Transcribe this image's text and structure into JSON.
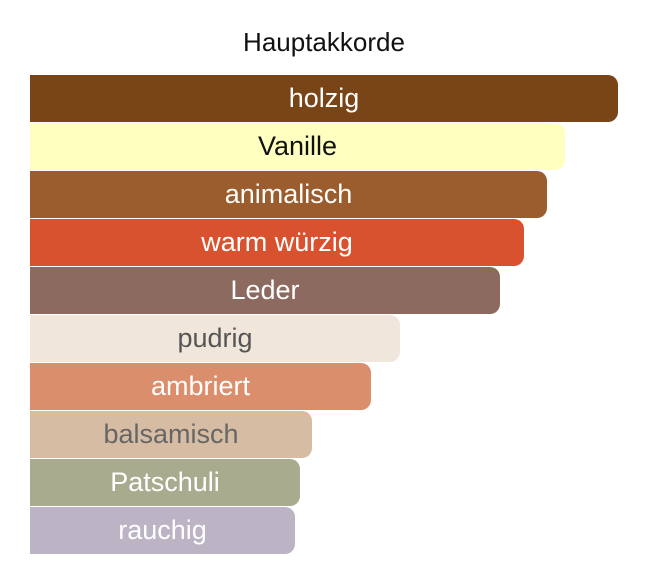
{
  "chart_data": {
    "type": "bar",
    "orientation": "horizontal",
    "title": "Hauptakkorde",
    "xlabel": "",
    "ylabel": "",
    "xlim": [
      0,
      100
    ],
    "grid": false,
    "legend": "none",
    "categories": [
      "holzig",
      "Vanille",
      "animalisch",
      "warm würzig",
      "Leder",
      "pudrig",
      "ambriert",
      "balsamisch",
      "Patschuli",
      "rauchig"
    ],
    "values": [
      100,
      91,
      88,
      84,
      80,
      63,
      58,
      48,
      46,
      45
    ],
    "colors": [
      "#7a4516",
      "#ffffc0",
      "#9b5d2d",
      "#d9522f",
      "#8d6a5f",
      "#f1e6dc",
      "#da8e6c",
      "#d6bca3",
      "#a9ab8f",
      "#bcb4c4"
    ],
    "label_colors": [
      "#ffffff",
      "#111111",
      "#ffffff",
      "#ffffff",
      "#ffffff",
      "#555555",
      "#ffffff",
      "#666666",
      "#ffffff",
      "#ffffff"
    ]
  }
}
